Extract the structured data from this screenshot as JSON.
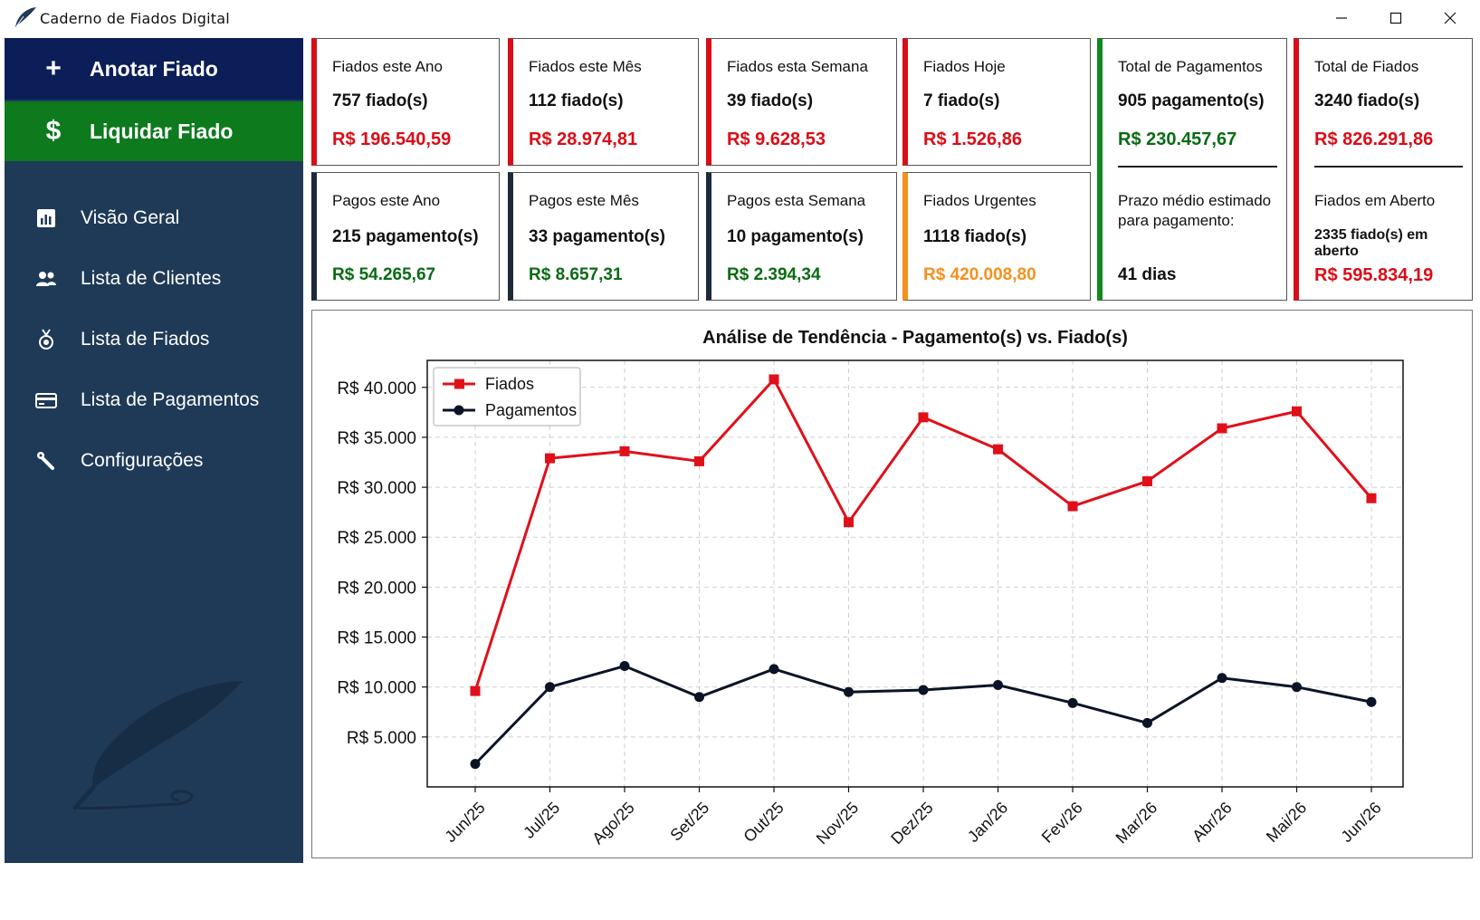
{
  "window": {
    "title": "Caderno de Fiados Digital",
    "controls": [
      "minimize",
      "maximize",
      "close"
    ]
  },
  "sidebar": {
    "actions": [
      {
        "label": "Anotar Fiado",
        "icon": "plus-icon",
        "color": "#0c1e58"
      },
      {
        "label": "Liquidar Fiado",
        "icon": "dollar-icon",
        "color": "#0e7a1e"
      }
    ],
    "nav": [
      {
        "label": "Visão Geral",
        "icon": "bar-chart-icon"
      },
      {
        "label": "Lista de Clientes",
        "icon": "users-icon"
      },
      {
        "label": "Lista de Fiados",
        "icon": "badge-icon"
      },
      {
        "label": "Lista de Pagamentos",
        "icon": "credit-card-icon"
      },
      {
        "label": "Configurações",
        "icon": "wrench-icon"
      }
    ],
    "background": "#1f3a57"
  },
  "cards": {
    "fiados_ano": {
      "label": "Fiados este Ano",
      "count": "757 fiado(s)",
      "amount": "R$ 196.540,59",
      "accent": "#d90d17"
    },
    "fiados_mes": {
      "label": "Fiados este Mês",
      "count": "112 fiado(s)",
      "amount": "R$ 28.974,81",
      "accent": "#d90d17"
    },
    "fiados_semana": {
      "label": "Fiados esta Semana",
      "count": "39 fiado(s)",
      "amount": "R$ 9.628,53",
      "accent": "#d90d17"
    },
    "fiados_hoje": {
      "label": "Fiados Hoje",
      "count": "7 fiado(s)",
      "amount": "R$ 1.526,86",
      "accent": "#d90d17"
    },
    "total_pagamentos": {
      "label": "Total de Pagamentos",
      "count": "905 pagamento(s)",
      "amount": "R$ 230.457,67",
      "accent": "#0e8a1e"
    },
    "total_fiados": {
      "label": "Total de Fiados",
      "count": "3240 fiado(s)",
      "amount": "R$ 826.291,86",
      "accent": "#d90d17"
    },
    "pagos_ano": {
      "label": "Pagos este Ano",
      "count": "215 pagamento(s)",
      "amount": "R$ 54.265,67",
      "accent": "#1c2a3c"
    },
    "pagos_mes": {
      "label": "Pagos este Mês",
      "count": "33 pagamento(s)",
      "amount": "R$ 8.657,31",
      "accent": "#1c2a3c"
    },
    "pagos_semana": {
      "label": "Pagos esta Semana",
      "count": "10 pagamento(s)",
      "amount": "R$ 2.394,34",
      "accent": "#1c2a3c"
    },
    "fiados_urgentes": {
      "label": "Fiados Urgentes",
      "count": "1118 fiado(s)",
      "amount": "R$ 420.008,80",
      "accent": "#f5901e"
    },
    "prazo_medio": {
      "label": "Prazo médio estimado para pagamento:",
      "value": "41 dias",
      "accent": "#0e8a1e"
    },
    "fiados_aberto": {
      "label": "Fiados em Aberto",
      "count": "2335 fiado(s) em aberto",
      "amount": "R$ 595.834,19",
      "accent": "#d90d17"
    }
  },
  "chart_data": {
    "type": "line",
    "title": "Análise de Tendência - Pagamento(s) vs. Fiado(s)",
    "xlabel": "",
    "ylabel": "",
    "categories": [
      "Jun/25",
      "Jul/25",
      "Ago/25",
      "Set/25",
      "Out/25",
      "Nov/25",
      "Dez/25",
      "Jan/26",
      "Fev/26",
      "Mar/26",
      "Abr/26",
      "Mai/26",
      "Jun/26"
    ],
    "series": [
      {
        "name": "Fiados",
        "color": "#e0101a",
        "marker": "square",
        "values": [
          9600,
          32900,
          33600,
          32600,
          40800,
          26500,
          37000,
          33800,
          28100,
          30600,
          35900,
          37600,
          28900
        ]
      },
      {
        "name": "Pagamentos",
        "color": "#0b1426",
        "marker": "circle",
        "values": [
          2300,
          10000,
          12100,
          9000,
          11800,
          9500,
          9700,
          10200,
          8400,
          6400,
          10900,
          10000,
          8500
        ]
      }
    ],
    "yticks": [
      "R$ 5.000",
      "R$ 10.000",
      "R$ 15.000",
      "R$ 20.000",
      "R$ 25.000",
      "R$ 30.000",
      "R$ 35.000",
      "R$ 40.000"
    ],
    "ytick_values": [
      5000,
      10000,
      15000,
      20000,
      25000,
      30000,
      35000,
      40000
    ],
    "ylim": [
      0,
      42700
    ],
    "grid": true,
    "legend_position": "top-left"
  }
}
